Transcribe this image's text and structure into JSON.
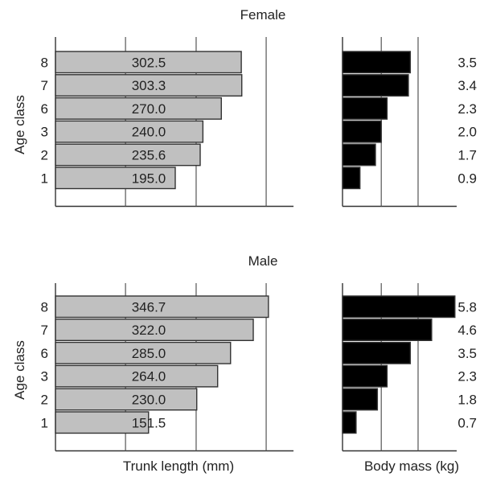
{
  "chart_data": [
    {
      "type": "bar",
      "panel": "female-trunk-length",
      "title": "Female",
      "ylabel": "Age class",
      "categories": [
        "8",
        "7",
        "6",
        "3",
        "2",
        "1"
      ],
      "values": [
        302.5,
        303.3,
        270.0,
        240.0,
        235.6,
        195.0
      ],
      "value_labels": [
        "302.5",
        "303.3",
        "270.0",
        "240.0",
        "235.6",
        "195.0"
      ],
      "xlim": [
        0,
        350
      ],
      "bar_color": "#c0c0c0"
    },
    {
      "type": "bar",
      "panel": "female-body-mass",
      "title": "Female",
      "categories": [
        "8",
        "7",
        "6",
        "3",
        "2",
        "1"
      ],
      "values": [
        3.5,
        3.4,
        2.3,
        2.0,
        1.7,
        0.9
      ],
      "value_labels": [
        "3.5",
        "3.4",
        "2.3",
        "2.0",
        "1.7",
        "0.9"
      ],
      "xlim": [
        0,
        6
      ],
      "bar_color": "#000000"
    },
    {
      "type": "bar",
      "panel": "male-trunk-length",
      "title": "Male",
      "ylabel": "Age class",
      "xlabel": "Trunk length (mm)",
      "categories": [
        "8",
        "7",
        "6",
        "3",
        "2",
        "1"
      ],
      "values": [
        346.7,
        322.0,
        285.0,
        264.0,
        230.0,
        151.5
      ],
      "value_labels": [
        "346.7",
        "322.0",
        "285.0",
        "264.0",
        "230.0",
        "151.5"
      ],
      "xlim": [
        0,
        350
      ],
      "bar_color": "#c0c0c0"
    },
    {
      "type": "bar",
      "panel": "male-body-mass",
      "title": "Male",
      "xlabel": "Body mass (kg)",
      "categories": [
        "8",
        "7",
        "6",
        "3",
        "2",
        "1"
      ],
      "values": [
        5.8,
        4.6,
        3.5,
        2.3,
        1.8,
        0.7
      ],
      "value_labels": [
        "5.8",
        "4.6",
        "3.5",
        "2.3",
        "1.8",
        "0.7"
      ],
      "xlim": [
        0,
        6
      ],
      "bar_color": "#000000"
    }
  ]
}
